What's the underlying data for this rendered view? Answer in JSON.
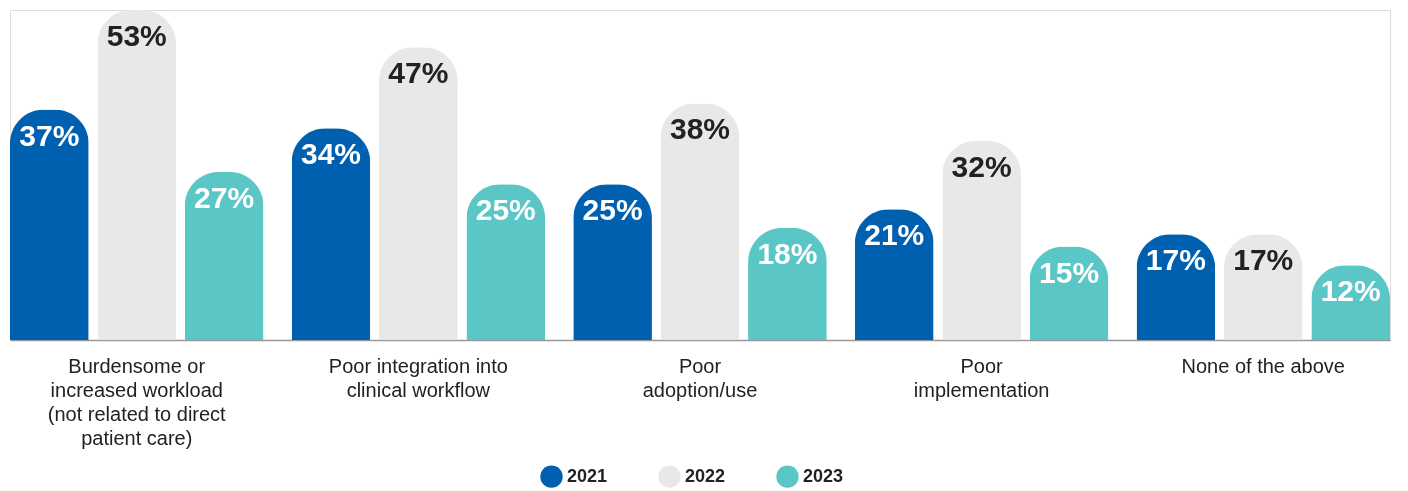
{
  "chart_data": {
    "type": "bar",
    "categories": [
      "Burdensome or\nincreased workload\n(not related to direct\npatient care)",
      "Poor integration into\nclinical workflow",
      "Poor\nadoption/use",
      "Poor\nimplementation",
      "None of the above"
    ],
    "series": [
      {
        "name": "2021",
        "color": "#0060b0",
        "values": [
          37,
          34,
          25,
          21,
          17
        ],
        "value_labels": [
          "37%",
          "34%",
          "25%",
          "21%",
          "17%"
        ]
      },
      {
        "name": "2022",
        "color": "#e8e8e8",
        "values": [
          53,
          47,
          38,
          32,
          17
        ],
        "value_labels": [
          "53%",
          "47%",
          "38%",
          "32%",
          "17%"
        ]
      },
      {
        "name": "2023",
        "color": "#5bc6c6",
        "values": [
          27,
          25,
          18,
          15,
          12
        ],
        "value_labels": [
          "27%",
          "25%",
          "18%",
          "15%",
          "12%"
        ]
      }
    ],
    "legend": "bottom",
    "grid": false
  }
}
